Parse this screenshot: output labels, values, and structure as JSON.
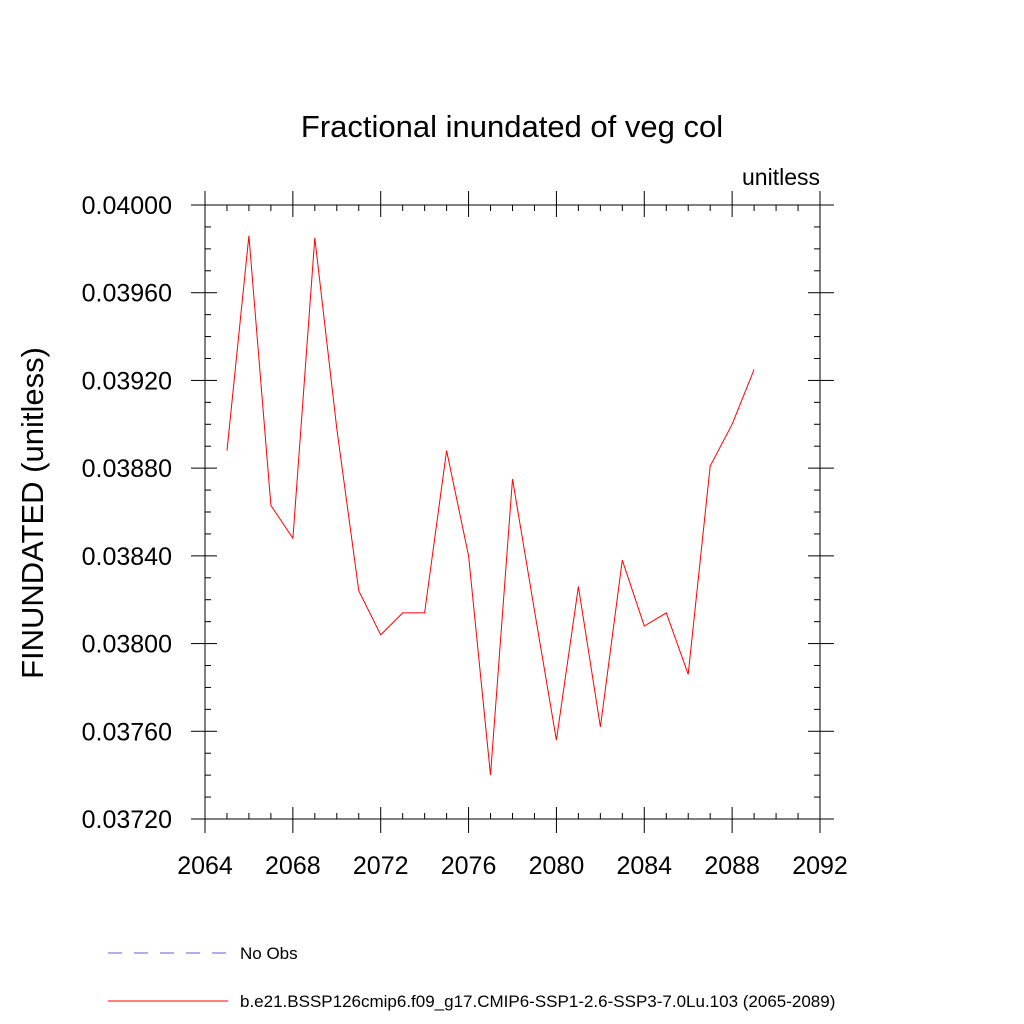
{
  "chart_data": {
    "type": "line",
    "title": "Fractional inundated of veg col",
    "units_label": "unitless",
    "ylabel": "FINUNDATED  (unitless)",
    "xlabel": "",
    "xlim": [
      2064,
      2092
    ],
    "ylim": [
      0.0372,
      0.04
    ],
    "x_ticks": [
      2064,
      2068,
      2072,
      2076,
      2080,
      2084,
      2088,
      2092
    ],
    "x_tick_labels": [
      "2064",
      "2068",
      "2072",
      "2076",
      "2080",
      "2084",
      "2088",
      "2092"
    ],
    "y_ticks": [
      0.0372,
      0.0376,
      0.038,
      0.0384,
      0.0388,
      0.0392,
      0.0396,
      0.04
    ],
    "y_tick_labels": [
      "0.03720",
      "0.03760",
      "0.03800",
      "0.03840",
      "0.03880",
      "0.03920",
      "0.03960",
      "0.04000"
    ],
    "grid": false,
    "legend_position": "bottom",
    "series": [
      {
        "name": "No Obs",
        "color": "#6a5acd",
        "dash": "dashed",
        "x": [],
        "y": []
      },
      {
        "name": "b.e21.BSSP126cmip6.f09_g17.CMIP6-SSP1-2.6-SSP3-7.0Lu.103 (2065-2089)",
        "color": "#ff0000",
        "dash": "solid",
        "x": [
          2065,
          2066,
          2067,
          2068,
          2069,
          2070,
          2071,
          2072,
          2073,
          2074,
          2075,
          2076,
          2077,
          2078,
          2079,
          2080,
          2081,
          2082,
          2083,
          2084,
          2085,
          2086,
          2087,
          2088,
          2089
        ],
        "y": [
          0.03888,
          0.03986,
          0.03863,
          0.03848,
          0.03985,
          0.03898,
          0.03824,
          0.03804,
          0.03814,
          0.03814,
          0.03888,
          0.0384,
          0.0374,
          0.03875,
          0.03815,
          0.03756,
          0.03826,
          0.03762,
          0.03838,
          0.03808,
          0.03814,
          0.03786,
          0.03881,
          0.039,
          0.03925
        ]
      }
    ]
  }
}
